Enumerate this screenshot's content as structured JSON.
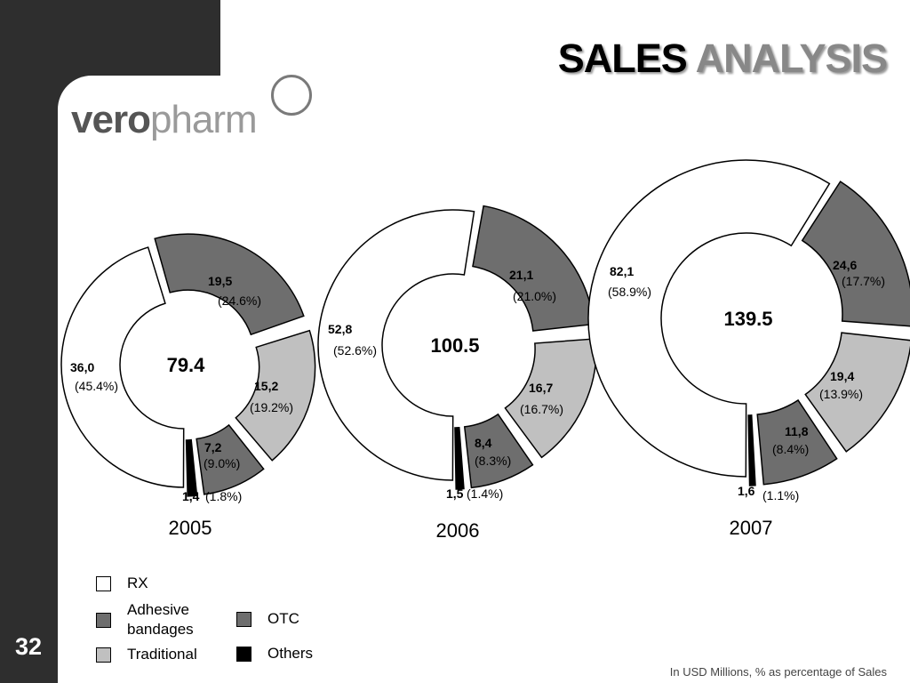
{
  "page": {
    "number": "32",
    "title_part1": "SALES",
    "title_part2": "ANALYSIS",
    "logo_part1": "vero",
    "logo_part2": "pharm",
    "footnote": "In USD Millions, % as percentage of Sales"
  },
  "colors": {
    "RX": "#ffffff",
    "Adhesive bandages": "#6e6e6e",
    "OTC": "#6e6e6e",
    "Traditional": "#c0c0c0",
    "Others": "#000000",
    "sidebar": "#2e2e2e"
  },
  "chart_data": [
    {
      "type": "pie",
      "style": "donut",
      "year": "2005",
      "total": "79.4",
      "segments": [
        {
          "category": "RX",
          "value": "36,0",
          "percent": "(45.4%)"
        },
        {
          "category": "Adhesive bandages",
          "value": "19,5",
          "percent": "(24.6%)"
        },
        {
          "category": "Traditional",
          "value": "15,2",
          "percent": "(19.2%)"
        },
        {
          "category": "OTC",
          "value": "7,2",
          "percent": "(9.0%)"
        },
        {
          "category": "Others",
          "value": "1,4",
          "percent": "(1.8%)"
        }
      ]
    },
    {
      "type": "pie",
      "style": "donut",
      "year": "2006",
      "total": "100.5",
      "segments": [
        {
          "category": "RX",
          "value": "52,8",
          "percent": "(52.6%)"
        },
        {
          "category": "Adhesive bandages",
          "value": "21,1",
          "percent": "(21.0%)"
        },
        {
          "category": "Traditional",
          "value": "16,7",
          "percent": "(16.7%)"
        },
        {
          "category": "OTC",
          "value": "8,4",
          "percent": "(8.3%)"
        },
        {
          "category": "Others",
          "value": "1,5",
          "percent": "(1.4%)"
        }
      ]
    },
    {
      "type": "pie",
      "style": "donut",
      "year": "2007",
      "total": "139.5",
      "segments": [
        {
          "category": "RX",
          "value": "82,1",
          "percent": "(58.9%)"
        },
        {
          "category": "Adhesive bandages",
          "value": "24,6",
          "percent": "(17.7%)"
        },
        {
          "category": "Traditional",
          "value": "19,4",
          "percent": "(13.9%)"
        },
        {
          "category": "OTC",
          "value": "11,8",
          "percent": "(8.4%)"
        },
        {
          "category": "Others",
          "value": "1,6",
          "percent": "(1.1%)"
        }
      ]
    }
  ],
  "legend": [
    {
      "label": "RX",
      "category": "RX"
    },
    {
      "label": "Adhesive bandages",
      "category": "Adhesive bandages"
    },
    {
      "label": "Traditional",
      "category": "Traditional"
    },
    {
      "label": "OTC",
      "category": "OTC"
    },
    {
      "label": "Others",
      "category": "Others"
    }
  ]
}
